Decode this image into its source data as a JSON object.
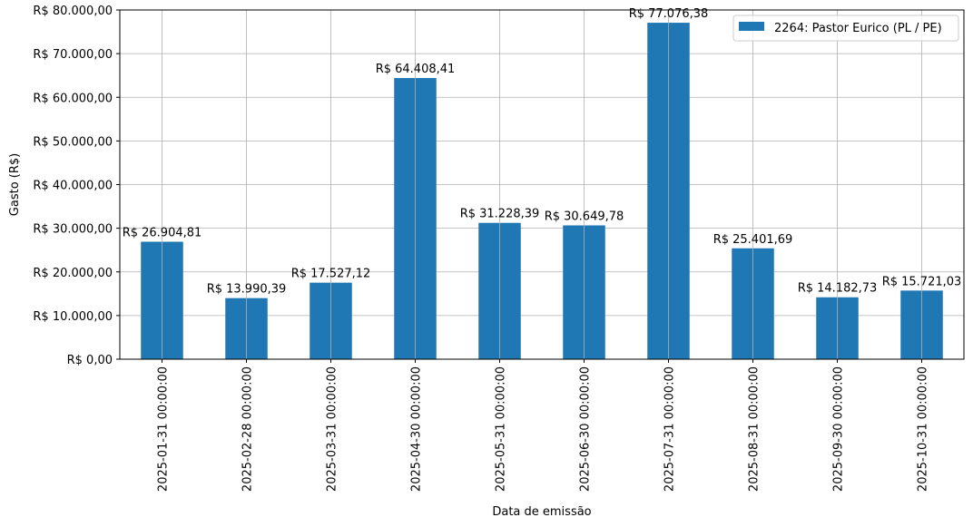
{
  "chart_data": {
    "type": "bar",
    "categories": [
      "2025-01-31 00:00:00",
      "2025-02-28 00:00:00",
      "2025-03-31 00:00:00",
      "2025-04-30 00:00:00",
      "2025-05-31 00:00:00",
      "2025-06-30 00:00:00",
      "2025-07-31 00:00:00",
      "2025-08-31 00:00:00",
      "2025-09-30 00:00:00",
      "2025-10-31 00:00:00"
    ],
    "series": [
      {
        "name": "2264: Pastor Eurico (PL / PE)",
        "color": "#1f77b4",
        "values": [
          26904.81,
          13990.39,
          17527.12,
          64408.41,
          31228.39,
          30649.78,
          77076.38,
          25401.69,
          14182.73,
          15721.03
        ]
      }
    ],
    "data_labels": [
      "R$ 26.904,81",
      "R$ 13.990,39",
      "R$ 17.527,12",
      "R$ 64.408,41",
      "R$ 31.228,39",
      "R$ 30.649,78",
      "R$ 77.076,38",
      "R$ 25.401,69",
      "R$ 14.182,73",
      "R$ 15.721,03"
    ],
    "xlabel": "Data de emissão",
    "ylabel": "Gasto (R$)",
    "ylim": [
      0,
      80000
    ],
    "yticks": [
      0,
      10000,
      20000,
      30000,
      40000,
      50000,
      60000,
      70000,
      80000
    ],
    "ytick_labels": [
      "R$ 0,00",
      "R$ 10.000,00",
      "R$ 20.000,00",
      "R$ 30.000,00",
      "R$ 40.000,00",
      "R$ 50.000,00",
      "R$ 60.000,00",
      "R$ 70.000,00",
      "R$ 80.000,00"
    ],
    "grid": true,
    "legend_position": "top-right"
  }
}
